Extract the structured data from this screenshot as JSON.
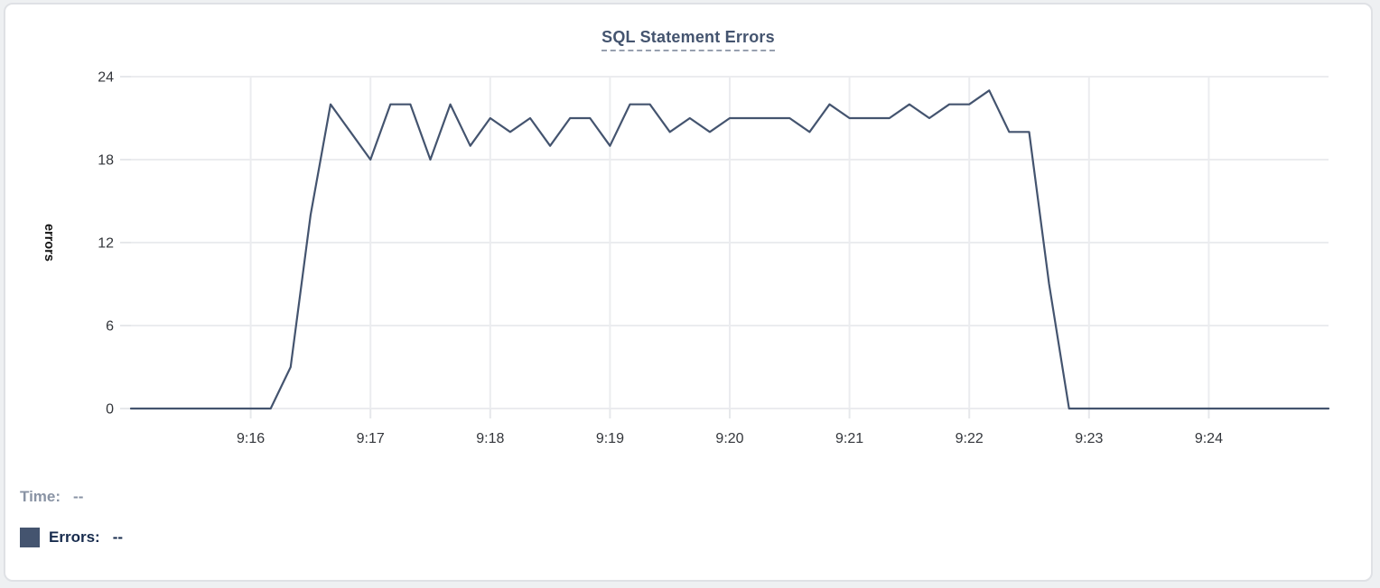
{
  "card": {
    "title": "SQL Statement Errors"
  },
  "tooltip": {
    "time_label": "Time:",
    "time_value": "--",
    "errors_label": "Errors:",
    "errors_value": "--"
  },
  "colors": {
    "line": "#44546F",
    "swatch": "#44546F",
    "title": "#44546F",
    "title_underline": "#97A0AF",
    "grid": "#ebecef",
    "tick": "#e6e8eb",
    "axis_text": "#33363b",
    "axis_label_text": "#111111",
    "time_text": "#8993A4",
    "errors_text": "#172B4D",
    "card_border": "#dfe1e5"
  },
  "chart_data": {
    "type": "line",
    "title": "SQL Statement Errors",
    "xlabel": "",
    "ylabel": "errors",
    "ylim": [
      0,
      24
    ],
    "y_ticks": [
      0,
      6,
      12,
      18,
      24
    ],
    "x_ticks": [
      "9:16",
      "9:17",
      "9:18",
      "9:19",
      "9:20",
      "9:21",
      "9:22",
      "9:23",
      "9:24"
    ],
    "x_range": [
      "9:15:00",
      "9:25:00"
    ],
    "grid": true,
    "legend_position": "bottom-left",
    "series": [
      {
        "name": "Errors",
        "color": "#44546F",
        "points": [
          [
            "9:15:00",
            0
          ],
          [
            "9:15:10",
            0
          ],
          [
            "9:15:20",
            0
          ],
          [
            "9:15:30",
            0
          ],
          [
            "9:15:40",
            0
          ],
          [
            "9:15:50",
            0
          ],
          [
            "9:16:00",
            0
          ],
          [
            "9:16:10",
            0
          ],
          [
            "9:16:20",
            3
          ],
          [
            "9:16:30",
            14
          ],
          [
            "9:16:40",
            22
          ],
          [
            "9:16:50",
            20
          ],
          [
            "9:17:00",
            18
          ],
          [
            "9:17:10",
            22
          ],
          [
            "9:17:20",
            22
          ],
          [
            "9:17:30",
            18
          ],
          [
            "9:17:40",
            22
          ],
          [
            "9:17:50",
            19
          ],
          [
            "9:18:00",
            21
          ],
          [
            "9:18:10",
            20
          ],
          [
            "9:18:20",
            21
          ],
          [
            "9:18:30",
            19
          ],
          [
            "9:18:40",
            21
          ],
          [
            "9:18:50",
            21
          ],
          [
            "9:19:00",
            19
          ],
          [
            "9:19:10",
            22
          ],
          [
            "9:19:20",
            22
          ],
          [
            "9:19:30",
            20
          ],
          [
            "9:19:40",
            21
          ],
          [
            "9:19:50",
            20
          ],
          [
            "9:20:00",
            21
          ],
          [
            "9:20:10",
            21
          ],
          [
            "9:20:20",
            21
          ],
          [
            "9:20:30",
            21
          ],
          [
            "9:20:40",
            20
          ],
          [
            "9:20:50",
            22
          ],
          [
            "9:21:00",
            21
          ],
          [
            "9:21:10",
            21
          ],
          [
            "9:21:20",
            21
          ],
          [
            "9:21:30",
            22
          ],
          [
            "9:21:40",
            21
          ],
          [
            "9:21:50",
            22
          ],
          [
            "9:22:00",
            22
          ],
          [
            "9:22:10",
            23
          ],
          [
            "9:22:20",
            20
          ],
          [
            "9:22:30",
            20
          ],
          [
            "9:22:40",
            9
          ],
          [
            "9:22:50",
            0
          ],
          [
            "9:23:00",
            0
          ],
          [
            "9:23:10",
            0
          ],
          [
            "9:23:20",
            0
          ],
          [
            "9:23:30",
            0
          ],
          [
            "9:23:40",
            0
          ],
          [
            "9:23:50",
            0
          ],
          [
            "9:24:00",
            0
          ],
          [
            "9:24:10",
            0
          ],
          [
            "9:24:20",
            0
          ],
          [
            "9:24:30",
            0
          ],
          [
            "9:24:40",
            0
          ],
          [
            "9:24:50",
            0
          ],
          [
            "9:25:00",
            0
          ]
        ]
      }
    ]
  }
}
